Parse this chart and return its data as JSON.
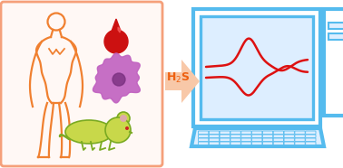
{
  "bg_color": "#ffffff",
  "left_box_color": "#f5a07a",
  "left_box_bg": "#fff8f5",
  "body_color": "#f08030",
  "blood_color": "#cc1111",
  "cell_color": "#c060c0",
  "cell_dark": "#7a3080",
  "mouse_color": "#c8d84a",
  "mouse_outline": "#7aaa22",
  "arrow_color": "#f5c0a0",
  "h2s_color": "#ee6010",
  "monitor_frame": "#55bbee",
  "monitor_bg": "#ffffff",
  "screen_fill": "#ddeeff",
  "cv_color": "#dd1111",
  "tower_color": "#55bbee",
  "keyboard_color": "#55bbee",
  "figsize": [
    3.78,
    1.86
  ],
  "dpi": 100
}
